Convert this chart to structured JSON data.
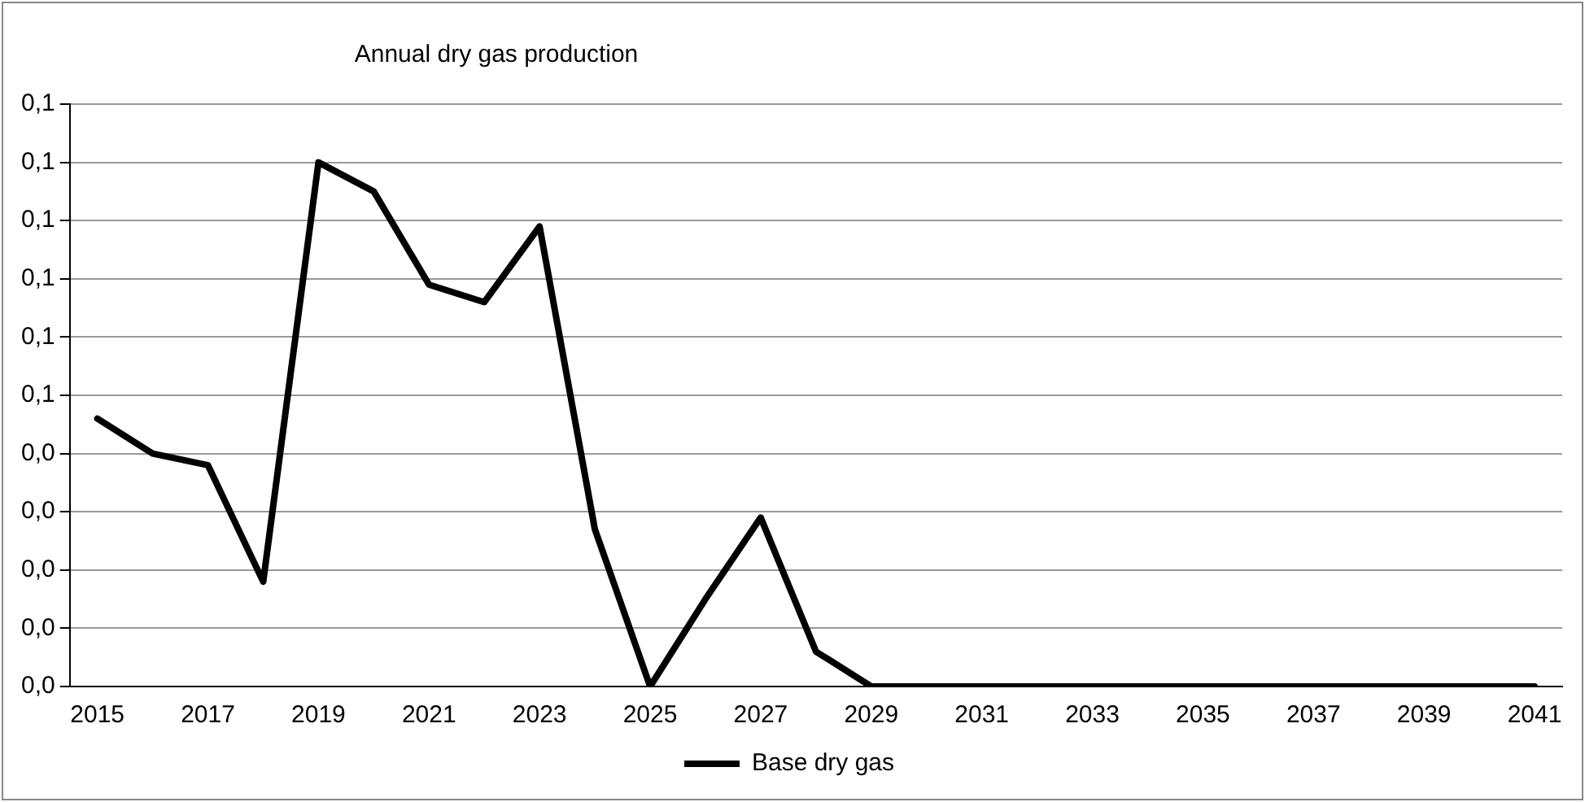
{
  "chart_data": {
    "type": "line",
    "title": "Annual dry gas production",
    "categories": [
      "2015",
      null,
      "2017",
      null,
      "2019",
      null,
      "2021",
      null,
      "2023",
      null,
      "2025",
      null,
      "2027",
      null,
      "2029",
      null,
      "2031",
      null,
      "2033",
      null,
      "2035",
      null,
      "2037",
      null,
      "2039",
      null,
      "2041"
    ],
    "series": [
      {
        "name": "Base dry gas",
        "color": "#000000",
        "values": [
          0.046,
          0.04,
          0.038,
          0.018,
          0.09,
          0.085,
          0.069,
          0.066,
          0.079,
          0.027,
          0,
          0.015,
          0.029,
          0.006,
          0,
          0,
          0,
          0,
          0,
          0,
          0,
          0,
          0,
          0,
          0,
          0,
          0
        ]
      }
    ],
    "ylim": [
      0,
      0.1
    ],
    "yticks": [
      {
        "value": 0,
        "label": "0,0"
      },
      {
        "value": 0.01,
        "label": "0,0"
      },
      {
        "value": 0.02,
        "label": "0,0"
      },
      {
        "value": 0.03,
        "label": "0,0"
      },
      {
        "value": 0.04,
        "label": "0,0"
      },
      {
        "value": 0.05,
        "label": "0,1"
      },
      {
        "value": 0.06,
        "label": "0,1"
      },
      {
        "value": 0.07,
        "label": "0,1"
      },
      {
        "value": 0.08,
        "label": "0,1"
      },
      {
        "value": 0.09,
        "label": "0,1"
      },
      {
        "value": 0.1,
        "label": "0,1"
      }
    ],
    "grid": "y",
    "legend": "bottom",
    "marker": "none",
    "line_style": "solid"
  }
}
